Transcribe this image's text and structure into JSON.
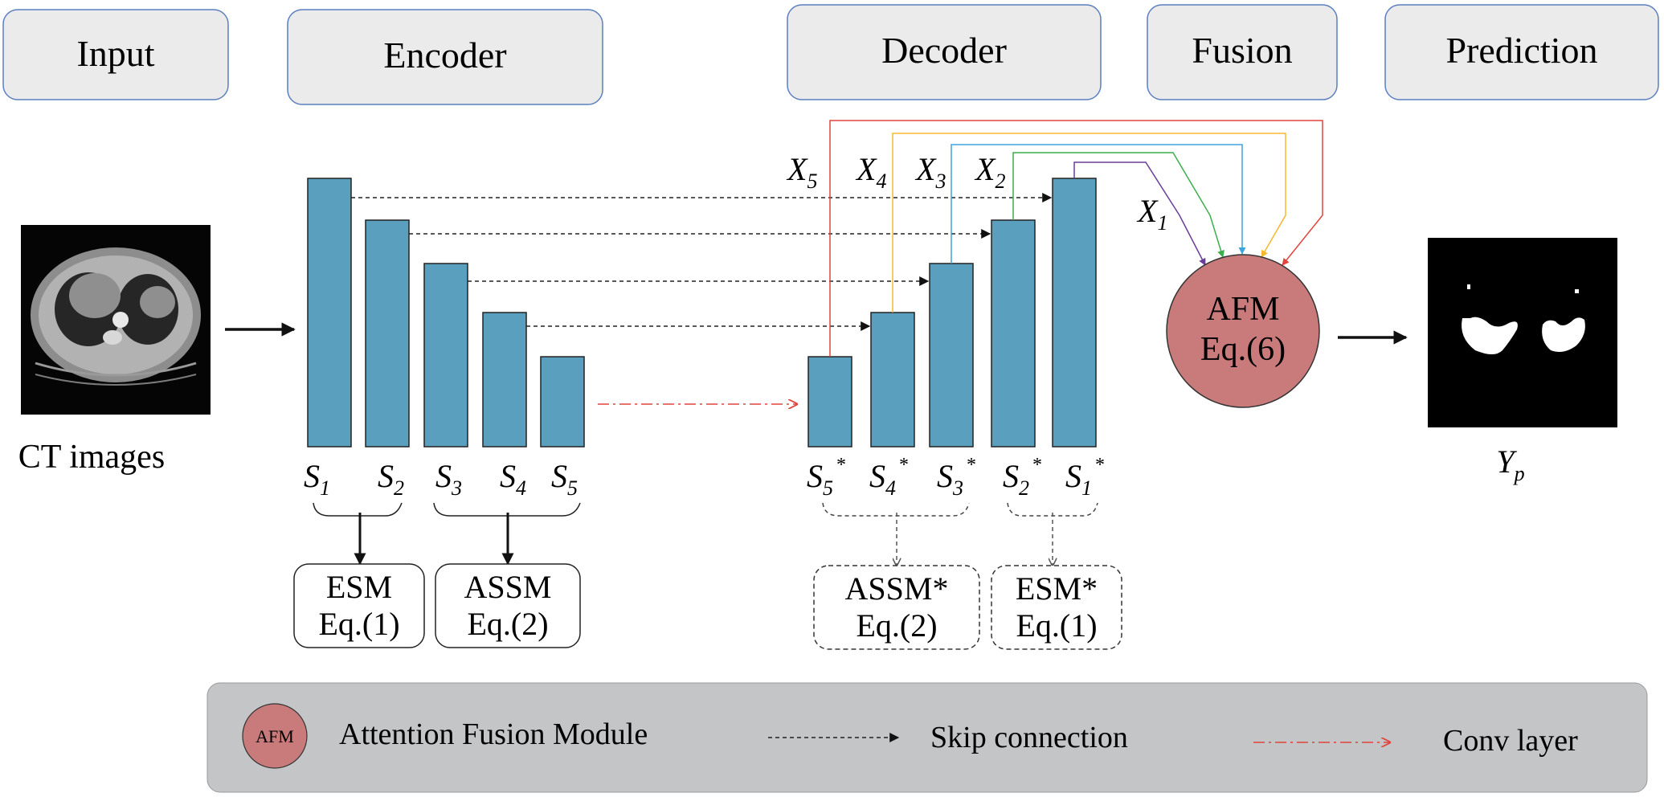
{
  "headers": {
    "input": "Input",
    "encoder": "Encoder",
    "decoder": "Decoder",
    "fusion": "Fusion",
    "prediction": "Prediction"
  },
  "input_caption": "CT images",
  "encoder_labels": [
    {
      "base": "S",
      "sub": "1"
    },
    {
      "base": "S",
      "sub": "2"
    },
    {
      "base": "S",
      "sub": "3"
    },
    {
      "base": "S",
      "sub": "4"
    },
    {
      "base": "S",
      "sub": "5"
    }
  ],
  "decoder_labels": [
    {
      "base": "S",
      "sub": "5",
      "sup": "*"
    },
    {
      "base": "S",
      "sub": "4",
      "sup": "*"
    },
    {
      "base": "S",
      "sub": "3",
      "sup": "*"
    },
    {
      "base": "S",
      "sub": "2",
      "sup": "*"
    },
    {
      "base": "S",
      "sub": "1",
      "sup": "*"
    }
  ],
  "x_labels": [
    {
      "base": "X",
      "sub": "5"
    },
    {
      "base": "X",
      "sub": "4"
    },
    {
      "base": "X",
      "sub": "3"
    },
    {
      "base": "X",
      "sub": "2"
    },
    {
      "base": "X",
      "sub": "1"
    }
  ],
  "modules": {
    "esm": {
      "name": "ESM",
      "eq": "Eq.(1)"
    },
    "assm": {
      "name": "ASSM",
      "eq": "Eq.(2)"
    },
    "assm_star": {
      "name": "ASSM*",
      "eq": "Eq.(2)"
    },
    "esm_star": {
      "name": "ESM*",
      "eq": "Eq.(1)"
    }
  },
  "afm": {
    "name": "AFM",
    "eq": "Eq.(6)"
  },
  "output_label": {
    "base": "Y",
    "sub": "p"
  },
  "legend": {
    "afm_icon": "AFM",
    "afm_text": "Attention Fusion Module",
    "skip_text": "Skip connection",
    "conv_text": "Conv layer"
  },
  "colors": {
    "bar": "#5a9fbe",
    "afm": "#c97b7b",
    "header_bg": "#ebebeb",
    "header_border": "#5b7fc0",
    "legend_bg": "#c4c5c7",
    "x5_line": "#e0443c",
    "x4_line": "#f5b731",
    "x3_line": "#3fa3de",
    "x2_line": "#3cae4a",
    "x1_line": "#6a3d9a",
    "conv": "#e0443c"
  }
}
